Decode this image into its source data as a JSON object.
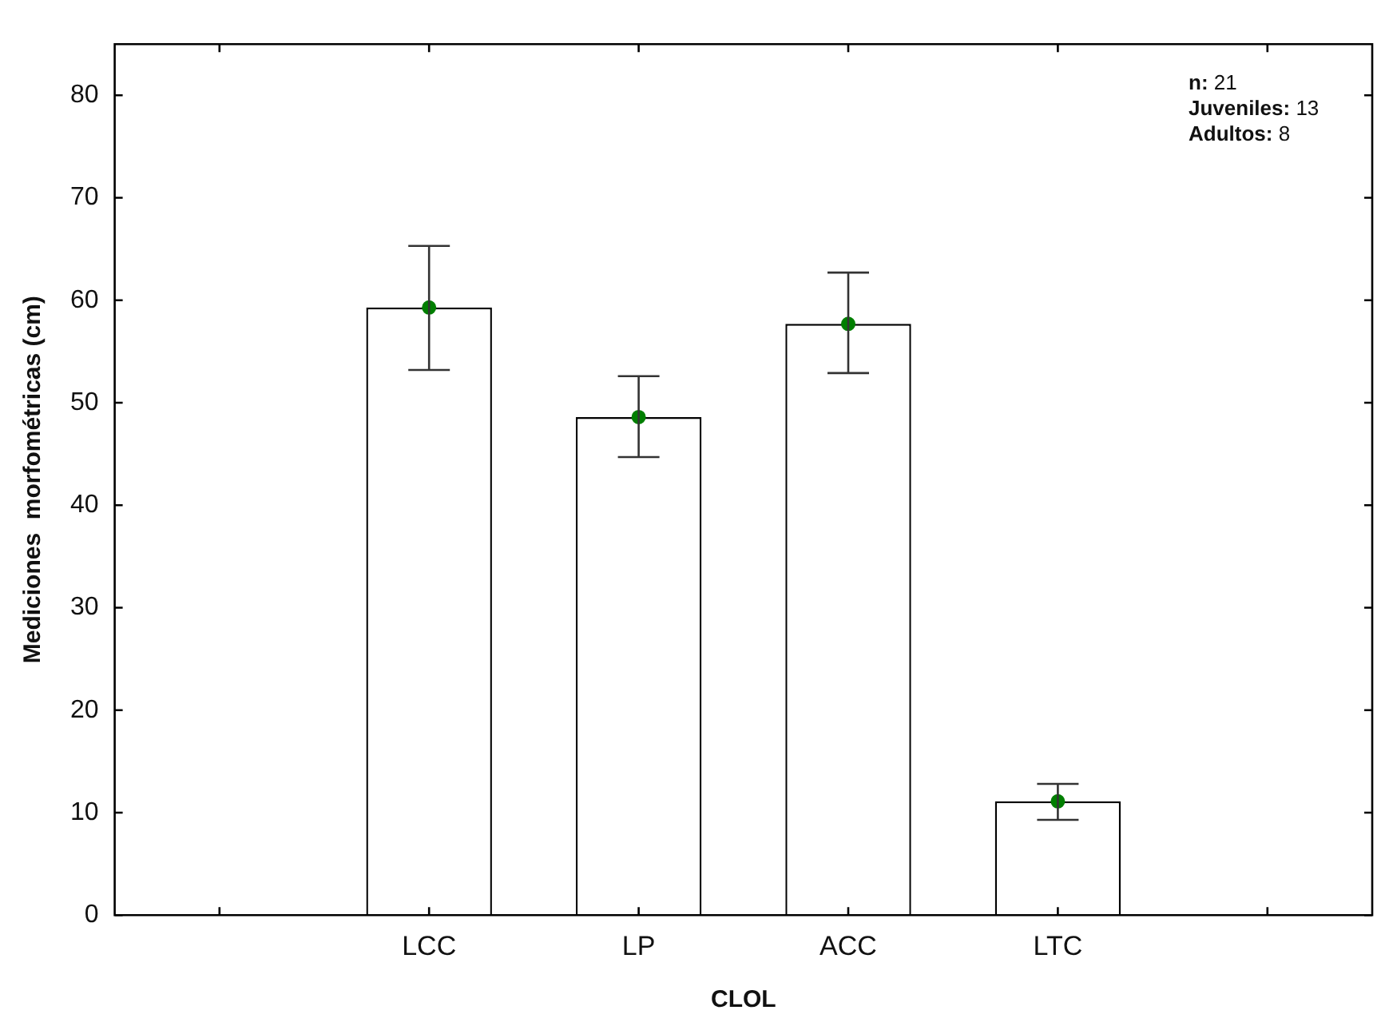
{
  "chart_data": {
    "type": "bar",
    "xlabel": "CLOL",
    "ylabel": "Mediciones  morfométricas (cm)",
    "categories": [
      null,
      "LCC",
      "LP",
      "ACC",
      "LTC",
      null
    ],
    "series": [
      {
        "color": "#ffffff",
        "values": [
          null,
          59.3,
          48.6,
          57.7,
          11.1,
          null
        ],
        "errors": [
          null,
          [
            53.2,
            65.3
          ],
          [
            44.7,
            52.6
          ],
          [
            52.9,
            62.7
          ],
          [
            9.3,
            12.8
          ],
          null
        ]
      },
      {
        "type": "scatter",
        "color": "#007f00",
        "x": [
          "LCC",
          "LP",
          "ACC",
          "LTC"
        ],
        "values": [
          59.3,
          48.6,
          57.7,
          11.1
        ]
      }
    ],
    "ylim": [
      0,
      85
    ],
    "yticks": [
      0,
      10,
      20,
      30,
      40,
      50,
      60,
      70,
      80
    ],
    "grid": false,
    "legend": false,
    "marker": "circle",
    "annotations": [
      "n: 21",
      "Juveniles: 13",
      "Adultos: 8"
    ]
  }
}
